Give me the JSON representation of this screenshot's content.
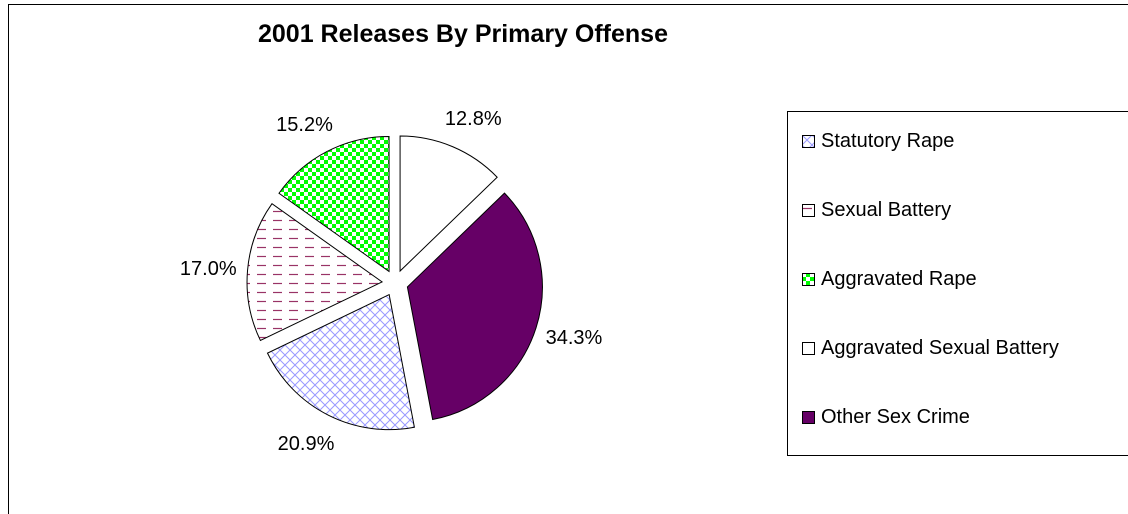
{
  "chart_data": {
    "type": "pie",
    "title": "2001 Releases By Primary Offense",
    "legend_position": "right",
    "slices": [
      {
        "name": "Aggravated Sexual Battery",
        "value": 12.8,
        "label": "12.8%",
        "color": "#ffffff",
        "pattern": "none"
      },
      {
        "name": "Other Sex Crime",
        "value": 34.3,
        "label": "34.3%",
        "color": "#660066",
        "pattern": "solid"
      },
      {
        "name": "Statutory Rape",
        "value": 20.9,
        "label": "20.9%",
        "color": "#ccccff",
        "pattern": "diagonal-cross"
      },
      {
        "name": "Sexual Battery",
        "value": 17.0,
        "label": "17.0%",
        "color": "#993366",
        "pattern": "horizontal-dash"
      },
      {
        "name": "Aggravated Rape",
        "value": 15.2,
        "label": "15.2%",
        "color": "#00ff00",
        "pattern": "checker"
      }
    ],
    "legend_order": [
      "Statutory Rape",
      "Sexual Battery",
      "Aggravated Rape",
      "Aggravated Sexual Battery",
      "Other Sex Crime"
    ]
  }
}
